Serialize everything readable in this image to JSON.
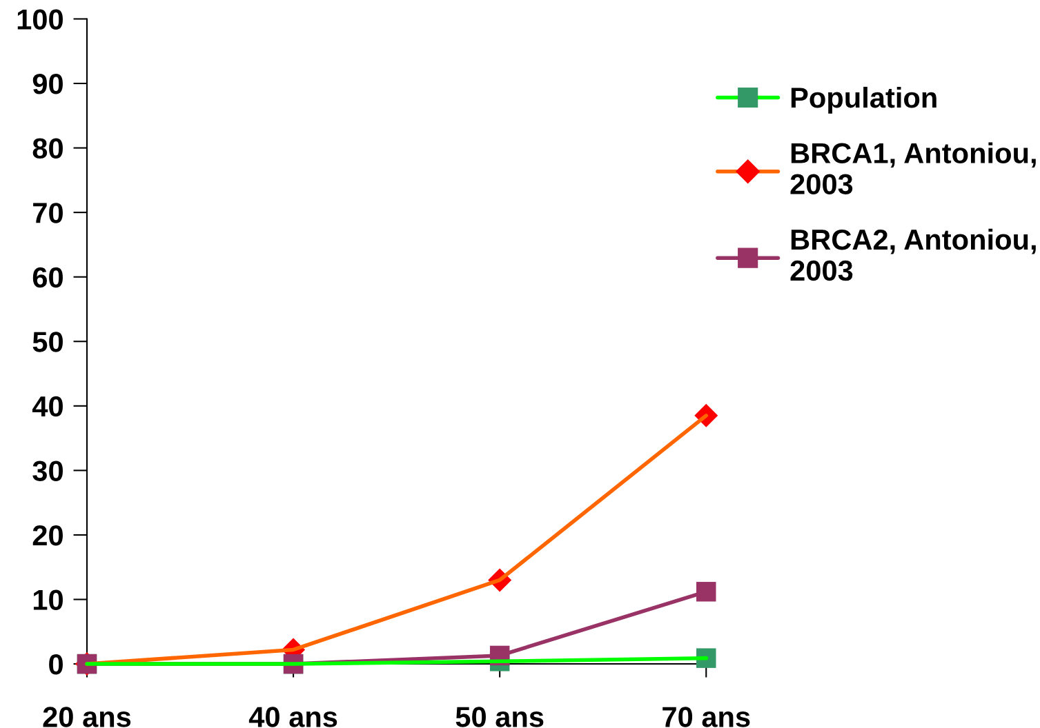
{
  "chart_data": {
    "type": "line",
    "categories": [
      "20 ans",
      "40 ans",
      "50 ans",
      "70 ans"
    ],
    "ylim": [
      0,
      100
    ],
    "yticks": [
      0,
      10,
      20,
      30,
      40,
      50,
      60,
      70,
      80,
      90,
      100
    ],
    "grid": false,
    "legend": "right",
    "series": [
      {
        "name": "Population",
        "color": "#00ff00",
        "colors": [
          "#339966",
          "#339966",
          "#339966",
          "#339966"
        ],
        "marker": "square",
        "values": [
          0,
          0,
          0.4,
          0.9
        ]
      },
      {
        "name": "BRCA1, Antoniou, 2003",
        "color": "#ff6600",
        "colors": [
          "#ff0000",
          "#ff0000",
          "#ff0000",
          "#ff0000"
        ],
        "marker": "diamond",
        "values": [
          0,
          2.2,
          13.0,
          38.5
        ]
      },
      {
        "name": "BRCA2, Antoniou, 2003",
        "color": "#993366",
        "colors": [
          "#993366",
          "#993366",
          "#993366",
          "#993366"
        ],
        "marker": "square",
        "values": [
          0,
          0,
          1.3,
          11.2
        ]
      }
    ]
  }
}
